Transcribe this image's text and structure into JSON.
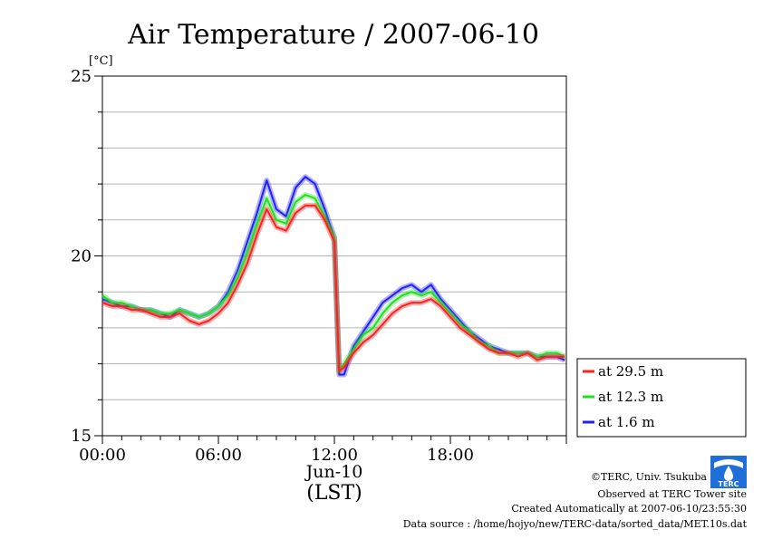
{
  "chart_data": {
    "type": "line",
    "title": "Air Temperature / 2007-06-10",
    "unit_label": "[°C]",
    "ylim": [
      15,
      25
    ],
    "yticks": [
      "15",
      "20",
      "25"
    ],
    "xlim": [
      "00:00",
      "24:00"
    ],
    "xticks": [
      "00:00",
      "06:00",
      "12:00",
      "18:00"
    ],
    "xlabel_date": "Jun-10",
    "xlabel": "(LST)",
    "grid": true,
    "legend_position": "right-bottom",
    "series": [
      {
        "name": "at 29.5 m",
        "color": "#ff2020",
        "x": [
          "00:00",
          "00:30",
          "01:00",
          "01:30",
          "02:00",
          "02:30",
          "03:00",
          "03:30",
          "04:00",
          "04:30",
          "05:00",
          "05:30",
          "06:00",
          "06:30",
          "07:00",
          "07:30",
          "08:00",
          "08:30",
          "09:00",
          "09:30",
          "10:00",
          "10:30",
          "11:00",
          "11:30",
          "12:00",
          "12:15",
          "12:30",
          "13:00",
          "13:30",
          "14:00",
          "14:30",
          "15:00",
          "15:30",
          "16:00",
          "16:30",
          "17:00",
          "17:30",
          "18:00",
          "18:30",
          "19:00",
          "19:30",
          "20:00",
          "20:30",
          "21:00",
          "21:30",
          "22:00",
          "22:30",
          "23:00",
          "23:30",
          "23:55"
        ],
        "values": [
          18.7,
          18.6,
          18.6,
          18.5,
          18.5,
          18.4,
          18.3,
          18.3,
          18.4,
          18.2,
          18.1,
          18.2,
          18.4,
          18.7,
          19.2,
          19.8,
          20.6,
          21.3,
          20.8,
          20.7,
          21.2,
          21.4,
          21.4,
          21.0,
          20.4,
          16.8,
          16.9,
          17.3,
          17.6,
          17.8,
          18.1,
          18.4,
          18.6,
          18.7,
          18.7,
          18.8,
          18.6,
          18.3,
          18.0,
          17.8,
          17.6,
          17.4,
          17.3,
          17.3,
          17.2,
          17.3,
          17.1,
          17.2,
          17.2,
          17.2
        ]
      },
      {
        "name": "at 12.3 m",
        "color": "#20e020",
        "x": [
          "00:00",
          "00:30",
          "01:00",
          "01:30",
          "02:00",
          "02:30",
          "03:00",
          "03:30",
          "04:00",
          "04:30",
          "05:00",
          "05:30",
          "06:00",
          "06:30",
          "07:00",
          "07:30",
          "08:00",
          "08:30",
          "09:00",
          "09:30",
          "10:00",
          "10:30",
          "11:00",
          "11:30",
          "12:00",
          "12:15",
          "12:30",
          "13:00",
          "13:30",
          "14:00",
          "14:30",
          "15:00",
          "15:30",
          "16:00",
          "16:30",
          "17:00",
          "17:30",
          "18:00",
          "18:30",
          "19:00",
          "19:30",
          "20:00",
          "20:30",
          "21:00",
          "21:30",
          "22:00",
          "22:30",
          "23:00",
          "23:30",
          "23:55"
        ],
        "values": [
          18.9,
          18.7,
          18.7,
          18.6,
          18.5,
          18.5,
          18.4,
          18.4,
          18.5,
          18.4,
          18.3,
          18.4,
          18.6,
          18.9,
          19.4,
          20.1,
          20.9,
          21.6,
          21.0,
          20.9,
          21.5,
          21.7,
          21.6,
          21.1,
          20.5,
          16.8,
          17.0,
          17.4,
          17.8,
          18.0,
          18.4,
          18.7,
          18.9,
          19.0,
          18.9,
          19.0,
          18.7,
          18.4,
          18.1,
          17.9,
          17.6,
          17.5,
          17.3,
          17.3,
          17.3,
          17.3,
          17.2,
          17.3,
          17.3,
          17.2
        ]
      },
      {
        "name": "at 1.6 m",
        "color": "#2020ff",
        "x": [
          "00:00",
          "00:30",
          "01:00",
          "01:30",
          "02:00",
          "02:30",
          "03:00",
          "03:30",
          "04:00",
          "04:30",
          "05:00",
          "05:30",
          "06:00",
          "06:30",
          "07:00",
          "07:30",
          "08:00",
          "08:30",
          "09:00",
          "09:30",
          "10:00",
          "10:30",
          "11:00",
          "11:30",
          "12:00",
          "12:15",
          "12:30",
          "13:00",
          "13:30",
          "14:00",
          "14:30",
          "15:00",
          "15:30",
          "16:00",
          "16:30",
          "17:00",
          "17:30",
          "18:00",
          "18:30",
          "19:00",
          "19:30",
          "20:00",
          "20:30",
          "21:00",
          "21:30",
          "22:00",
          "22:30",
          "23:00",
          "23:30",
          "23:55"
        ],
        "values": [
          18.8,
          18.7,
          18.6,
          18.6,
          18.5,
          18.5,
          18.4,
          18.3,
          18.5,
          18.4,
          18.3,
          18.4,
          18.6,
          19.0,
          19.6,
          20.4,
          21.2,
          22.1,
          21.3,
          21.1,
          21.9,
          22.2,
          22.0,
          21.3,
          20.5,
          16.7,
          16.7,
          17.5,
          17.9,
          18.3,
          18.7,
          18.9,
          19.1,
          19.2,
          19.0,
          19.2,
          18.8,
          18.5,
          18.2,
          17.9,
          17.7,
          17.5,
          17.4,
          17.3,
          17.3,
          17.3,
          17.2,
          17.2,
          17.2,
          17.1
        ]
      }
    ]
  },
  "footer": {
    "copyright": "©TERC, Univ. Tsukuba",
    "site": "Observed at TERC Tower site",
    "created": "Created Automatically at 2007-06-10/23:55:30",
    "source": "Data source : /home/hojyo/new/TERC-data/sorted_data/MET.10s.dat",
    "logo_text": "TERC"
  }
}
